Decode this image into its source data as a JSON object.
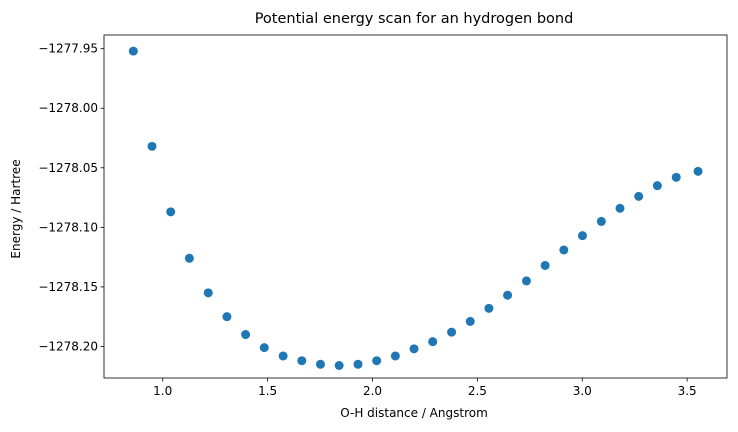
{
  "chart_data": {
    "type": "scatter",
    "title": "Potential energy scan for an hydrogen bond",
    "xlabel": "O-H distance / Angstrom",
    "ylabel": "Energy / Hartree",
    "xlim": [
      0.72,
      3.69
    ],
    "ylim": [
      -1278.2265,
      -1277.9385
    ],
    "xticks": [
      1.0,
      1.5,
      2.0,
      2.5,
      3.0,
      3.5
    ],
    "xtick_labels": [
      "1.0",
      "1.5",
      "2.0",
      "2.5",
      "3.0",
      "3.5"
    ],
    "yticks": [
      -1277.95,
      -1278.0,
      -1278.05,
      -1278.1,
      -1278.15,
      -1278.2
    ],
    "ytick_labels": [
      "−1277.95",
      "−1278.00",
      "−1278.05",
      "−1278.10",
      "−1278.15",
      "−1278.20"
    ],
    "grid": false,
    "marker_color": "#1f77b4",
    "x": [
      0.86,
      0.949,
      1.038,
      1.127,
      1.217,
      1.306,
      1.395,
      1.484,
      1.574,
      1.663,
      1.752,
      1.841,
      1.931,
      2.02,
      2.109,
      2.198,
      2.287,
      2.377,
      2.466,
      2.555,
      2.644,
      2.734,
      2.823,
      2.912,
      3.001,
      3.091,
      3.18,
      3.269,
      3.358,
      3.448,
      3.552
    ],
    "y": [
      -1277.952,
      -1278.032,
      -1278.087,
      -1278.126,
      -1278.155,
      -1278.175,
      -1278.19,
      -1278.201,
      -1278.208,
      -1278.212,
      -1278.215,
      -1278.216,
      -1278.215,
      -1278.212,
      -1278.208,
      -1278.202,
      -1278.196,
      -1278.188,
      -1278.179,
      -1278.168,
      -1278.157,
      -1278.145,
      -1278.132,
      -1278.119,
      -1278.107,
      -1278.095,
      -1278.084,
      -1278.074,
      -1278.065,
      -1278.058,
      -1278.053
    ]
  }
}
